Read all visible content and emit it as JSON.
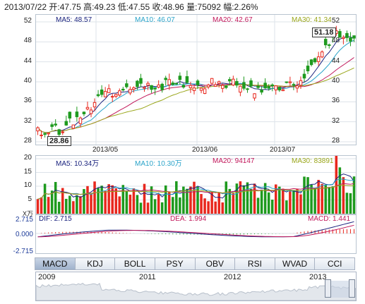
{
  "info": {
    "text": "2013/07/22 开:47.75 高:49.23 低:47.55 收:48.96 量:75092 幅:2.26%"
  },
  "kline": {
    "legend": [
      {
        "label": "MA5: 48.57",
        "color": "#1a237e"
      },
      {
        "label": "MA10: 46.07",
        "color": "#29a3c9"
      },
      {
        "label": "MA20: 42.67",
        "color": "#c2185b"
      },
      {
        "label": "MA30: 41.34",
        "color": "#9aa61a"
      }
    ],
    "yticks": [
      "52",
      "48",
      "44",
      "40",
      "36",
      "32",
      "28"
    ],
    "high_label": "51.18",
    "low_label": "28.86",
    "xlabels": [
      "2013/05",
      "2013/06",
      "2013/07"
    ]
  },
  "volume": {
    "legend": [
      {
        "label": "MA5: 10.34万",
        "color": "#1a237e"
      },
      {
        "label": "MA10: 10.30万",
        "color": "#29a3c9"
      },
      {
        "label": "MA20: 94147",
        "color": "#c2185b"
      },
      {
        "label": "MA30: 83891",
        "color": "#9aa61a"
      }
    ],
    "yticks": [
      "20",
      "15",
      "10",
      "5"
    ],
    "unit": "X万"
  },
  "macd": {
    "legend": [
      {
        "label": "DIF: 2.715",
        "color": "#1a237e"
      },
      {
        "label": "DEA: 1.994",
        "color": "#c2185b"
      },
      {
        "label": "MACD: 1.441",
        "color": "#c2185b"
      }
    ],
    "yticks": [
      "2.715",
      "0.000",
      "-2.715"
    ]
  },
  "tabs": [
    "MACD",
    "KDJ",
    "BOLL",
    "PSY",
    "OBV",
    "RSI",
    "WVAD",
    "CCI"
  ],
  "active_tab": "MACD",
  "navigator": {
    "years": [
      "2009",
      "2011",
      "2012",
      "2013"
    ]
  },
  "colors": {
    "up": "#e8281e",
    "down": "#1e9a1e"
  }
}
